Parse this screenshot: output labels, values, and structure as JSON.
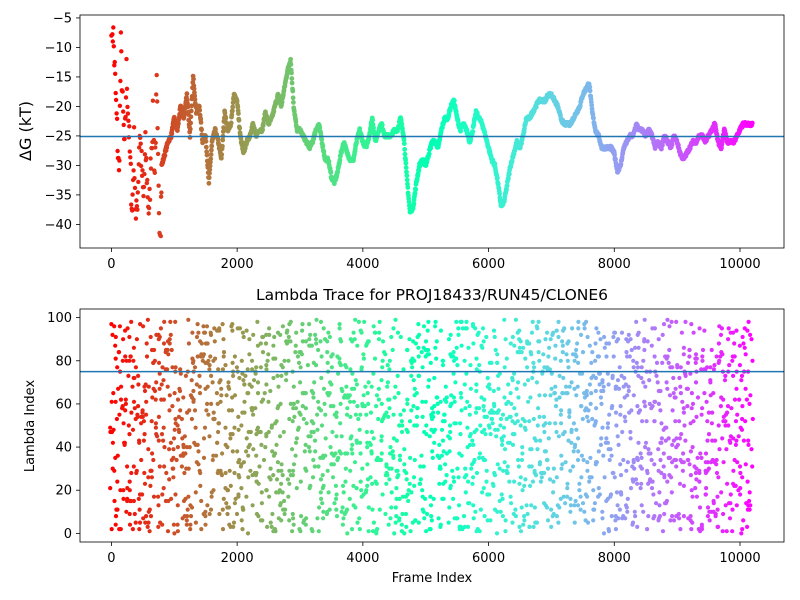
{
  "chart_data": [
    {
      "type": "scatter",
      "panel": "top",
      "title": "",
      "xlabel": "",
      "ylabel": "ΔG (kT)",
      "xlim": [
        -500,
        10700
      ],
      "ylim": [
        -44,
        -4.5
      ],
      "xticks": [
        0,
        2000,
        4000,
        6000,
        8000,
        10000
      ],
      "yticks": [
        -40,
        -35,
        -30,
        -25,
        -20,
        -15,
        -10,
        -5
      ],
      "hline": -25.1,
      "colormap": "rainbow (frame index mapped from red at 0 to violet at ~10200)",
      "trace_points": [
        [
          0,
          -5
        ],
        [
          30,
          -8
        ],
        [
          60,
          -16
        ],
        [
          90,
          -24
        ],
        [
          120,
          -32
        ],
        [
          150,
          -10
        ],
        [
          180,
          -20
        ],
        [
          210,
          -28
        ],
        [
          240,
          -14
        ],
        [
          270,
          -22
        ],
        [
          300,
          -30
        ],
        [
          330,
          -38
        ],
        [
          360,
          -26
        ],
        [
          390,
          -40
        ],
        [
          420,
          -34
        ],
        [
          450,
          -24
        ],
        [
          480,
          -30
        ],
        [
          510,
          -36
        ],
        [
          540,
          -27
        ],
        [
          570,
          -33
        ],
        [
          600,
          -39
        ],
        [
          630,
          -28
        ],
        [
          660,
          -22
        ],
        [
          690,
          -31
        ],
        [
          720,
          -17
        ],
        [
          750,
          -35
        ],
        [
          780,
          -42
        ],
        [
          800,
          -30
        ],
        [
          850,
          -28
        ],
        [
          900,
          -26
        ],
        [
          950,
          -25
        ],
        [
          1000,
          -22
        ],
        [
          1050,
          -24
        ],
        [
          1100,
          -20
        ],
        [
          1150,
          -22
        ],
        [
          1200,
          -18
        ],
        [
          1250,
          -25
        ],
        [
          1300,
          -15
        ],
        [
          1350,
          -21
        ],
        [
          1400,
          -20
        ],
        [
          1450,
          -26
        ],
        [
          1500,
          -25
        ],
        [
          1550,
          -33
        ],
        [
          1600,
          -26
        ],
        [
          1650,
          -24
        ],
        [
          1700,
          -26
        ],
        [
          1750,
          -29
        ],
        [
          1800,
          -21
        ],
        [
          1850,
          -24
        ],
        [
          1900,
          -23
        ],
        [
          1950,
          -18
        ],
        [
          2000,
          -19
        ],
        [
          2050,
          -25
        ],
        [
          2100,
          -28
        ],
        [
          2150,
          -26
        ],
        [
          2200,
          -25
        ],
        [
          2250,
          -23
        ],
        [
          2300,
          -25
        ],
        [
          2350,
          -24
        ],
        [
          2400,
          -24
        ],
        [
          2450,
          -21
        ],
        [
          2500,
          -23
        ],
        [
          2550,
          -22
        ],
        [
          2600,
          -20
        ],
        [
          2650,
          -18
        ],
        [
          2700,
          -20
        ],
        [
          2750,
          -17
        ],
        [
          2800,
          -14
        ],
        [
          2850,
          -12
        ],
        [
          2900,
          -20
        ],
        [
          2950,
          -24
        ],
        [
          3000,
          -24
        ],
        [
          3050,
          -25
        ],
        [
          3100,
          -26
        ],
        [
          3150,
          -27
        ],
        [
          3200,
          -26
        ],
        [
          3250,
          -24
        ],
        [
          3300,
          -23
        ],
        [
          3350,
          -26
        ],
        [
          3400,
          -29
        ],
        [
          3450,
          -29
        ],
        [
          3500,
          -32
        ],
        [
          3550,
          -33
        ],
        [
          3600,
          -31
        ],
        [
          3650,
          -28
        ],
        [
          3700,
          -26
        ],
        [
          3750,
          -28
        ],
        [
          3800,
          -29
        ],
        [
          3850,
          -29
        ],
        [
          3900,
          -26
        ],
        [
          3950,
          -24
        ],
        [
          4000,
          -26
        ],
        [
          4050,
          -27
        ],
        [
          4100,
          -25
        ],
        [
          4150,
          -22
        ],
        [
          4200,
          -26
        ],
        [
          4250,
          -24
        ],
        [
          4300,
          -23
        ],
        [
          4350,
          -25
        ],
        [
          4400,
          -25
        ],
        [
          4450,
          -25
        ],
        [
          4500,
          -24
        ],
        [
          4550,
          -24
        ],
        [
          4600,
          -22
        ],
        [
          4650,
          -25
        ],
        [
          4700,
          -32
        ],
        [
          4750,
          -38
        ],
        [
          4800,
          -37
        ],
        [
          4850,
          -33
        ],
        [
          4900,
          -30
        ],
        [
          4950,
          -29
        ],
        [
          5000,
          -30
        ],
        [
          5050,
          -28
        ],
        [
          5100,
          -26
        ],
        [
          5150,
          -26
        ],
        [
          5200,
          -27
        ],
        [
          5250,
          -24
        ],
        [
          5300,
          -22
        ],
        [
          5350,
          -22
        ],
        [
          5400,
          -20
        ],
        [
          5450,
          -19
        ],
        [
          5500,
          -22
        ],
        [
          5550,
          -24
        ],
        [
          5600,
          -23
        ],
        [
          5650,
          -24
        ],
        [
          5700,
          -26
        ],
        [
          5750,
          -24
        ],
        [
          5800,
          -21
        ],
        [
          5850,
          -22
        ],
        [
          5900,
          -23
        ],
        [
          5950,
          -25
        ],
        [
          6000,
          -27
        ],
        [
          6050,
          -29
        ],
        [
          6100,
          -30
        ],
        [
          6150,
          -33
        ],
        [
          6200,
          -37
        ],
        [
          6250,
          -36
        ],
        [
          6300,
          -33
        ],
        [
          6350,
          -30
        ],
        [
          6400,
          -28
        ],
        [
          6450,
          -26
        ],
        [
          6500,
          -27
        ],
        [
          6550,
          -25
        ],
        [
          6600,
          -22
        ],
        [
          6650,
          -22
        ],
        [
          6700,
          -21
        ],
        [
          6750,
          -20
        ],
        [
          6800,
          -19
        ],
        [
          6850,
          -19
        ],
        [
          6900,
          -19
        ],
        [
          6950,
          -18
        ],
        [
          7000,
          -18
        ],
        [
          7050,
          -19
        ],
        [
          7100,
          -20
        ],
        [
          7150,
          -22
        ],
        [
          7200,
          -23
        ],
        [
          7250,
          -23
        ],
        [
          7300,
          -23
        ],
        [
          7350,
          -22
        ],
        [
          7400,
          -21
        ],
        [
          7450,
          -20
        ],
        [
          7500,
          -18
        ],
        [
          7550,
          -17
        ],
        [
          7600,
          -16
        ],
        [
          7650,
          -21
        ],
        [
          7700,
          -24
        ],
        [
          7750,
          -25
        ],
        [
          7800,
          -27
        ],
        [
          7850,
          -27
        ],
        [
          7900,
          -27
        ],
        [
          7950,
          -27
        ],
        [
          8000,
          -28
        ],
        [
          8050,
          -31
        ],
        [
          8100,
          -30
        ],
        [
          8150,
          -27
        ],
        [
          8200,
          -26
        ],
        [
          8250,
          -25
        ],
        [
          8300,
          -25
        ],
        [
          8350,
          -23
        ],
        [
          8400,
          -24
        ],
        [
          8450,
          -24
        ],
        [
          8500,
          -25
        ],
        [
          8550,
          -24
        ],
        [
          8600,
          -25
        ],
        [
          8650,
          -27
        ],
        [
          8700,
          -26
        ],
        [
          8750,
          -27
        ],
        [
          8800,
          -25
        ],
        [
          8850,
          -26
        ],
        [
          8900,
          -27
        ],
        [
          8950,
          -25
        ],
        [
          9000,
          -26
        ],
        [
          9050,
          -28
        ],
        [
          9100,
          -29
        ],
        [
          9150,
          -28
        ],
        [
          9200,
          -27
        ],
        [
          9250,
          -26
        ],
        [
          9300,
          -26
        ],
        [
          9350,
          -25
        ],
        [
          9400,
          -25
        ],
        [
          9450,
          -26
        ],
        [
          9500,
          -25
        ],
        [
          9550,
          -24
        ],
        [
          9600,
          -23
        ],
        [
          9650,
          -26
        ],
        [
          9700,
          -27
        ],
        [
          9750,
          -24
        ],
        [
          9800,
          -26
        ],
        [
          9850,
          -26
        ],
        [
          9900,
          -26
        ],
        [
          9950,
          -25
        ],
        [
          10000,
          -24
        ],
        [
          10050,
          -23
        ],
        [
          10100,
          -23
        ],
        [
          10150,
          -23
        ],
        [
          10200,
          -23
        ]
      ]
    },
    {
      "type": "scatter",
      "panel": "bottom",
      "title": "Lambda Trace for PROJ18433/RUN45/CLONE6",
      "xlabel": "Frame Index",
      "ylabel": "Lambda Index",
      "xlim": [
        -500,
        10700
      ],
      "ylim": [
        -4,
        104
      ],
      "xticks": [
        0,
        2000,
        4000,
        6000,
        8000,
        10000
      ],
      "yticks": [
        0,
        20,
        40,
        60,
        80,
        100
      ],
      "hline": 75,
      "colormap": "rainbow (frame index mapped from red at 0 to violet at ~10200)",
      "range_min": 0,
      "range_max": 99,
      "note_distribution": "points densely cover lambda indices 0 to 99 across frames 0 to ~10200"
    }
  ]
}
